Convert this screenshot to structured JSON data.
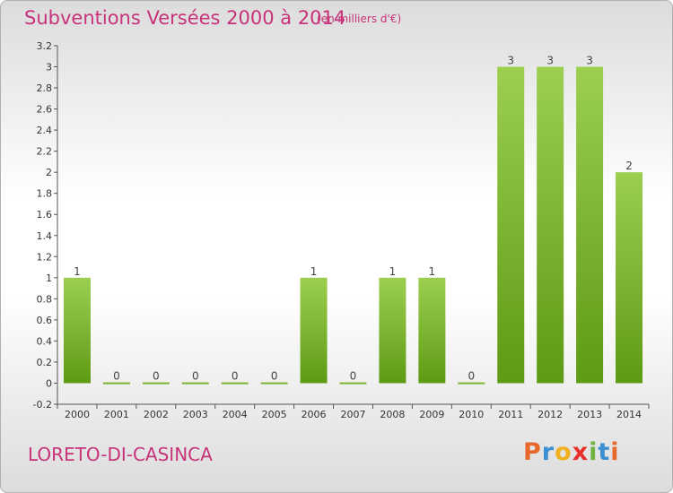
{
  "header": {
    "title": "Subventions Versées 2000 à 2014",
    "units": "(en milliers d'€)"
  },
  "footer": {
    "place": "LORETO-DI-CASINCA",
    "logo_letters": [
      "P",
      "r",
      "o",
      "x",
      "i",
      "t",
      "i"
    ],
    "logo_colors": [
      "#e8672a",
      "#3c8fd0",
      "#f0b020",
      "#e8302a",
      "#6cb33f",
      "#3c8fd0",
      "#e8672a"
    ]
  },
  "chart_data": {
    "type": "bar",
    "title": "Subventions Versées 2000 à 2014",
    "subtitle": "(en milliers d'€)",
    "categories": [
      "2000",
      "2001",
      "2002",
      "2003",
      "2004",
      "2005",
      "2006",
      "2007",
      "2008",
      "2009",
      "2010",
      "2011",
      "2012",
      "2013",
      "2014"
    ],
    "values": [
      1,
      0,
      0,
      0,
      0,
      0,
      1,
      0,
      1,
      1,
      0,
      3,
      3,
      3,
      2
    ],
    "data_labels": [
      "1",
      "0",
      "0",
      "0",
      "0",
      "0",
      "1",
      "0",
      "1",
      "1",
      "0",
      "3",
      "3",
      "3",
      "2"
    ],
    "ylim": [
      -0.2,
      3.2
    ],
    "yticks": [
      -0.2,
      0,
      0.2,
      0.4,
      0.6,
      0.8,
      1,
      1.2,
      1.4,
      1.6,
      1.8,
      2,
      2.2,
      2.4,
      2.6,
      2.8,
      3,
      3.2
    ],
    "ytick_labels": [
      "-0.2",
      "0",
      "0.2",
      "0.4",
      "0.6",
      "0.8",
      "1",
      "1.2",
      "1.4",
      "1.6",
      "1.8",
      "2",
      "2.2",
      "2.4",
      "2.6",
      "2.8",
      "3",
      "3.2"
    ],
    "grid": false,
    "bar_color_top": "#9ccf50",
    "bar_color_bottom": "#5e9a14"
  }
}
